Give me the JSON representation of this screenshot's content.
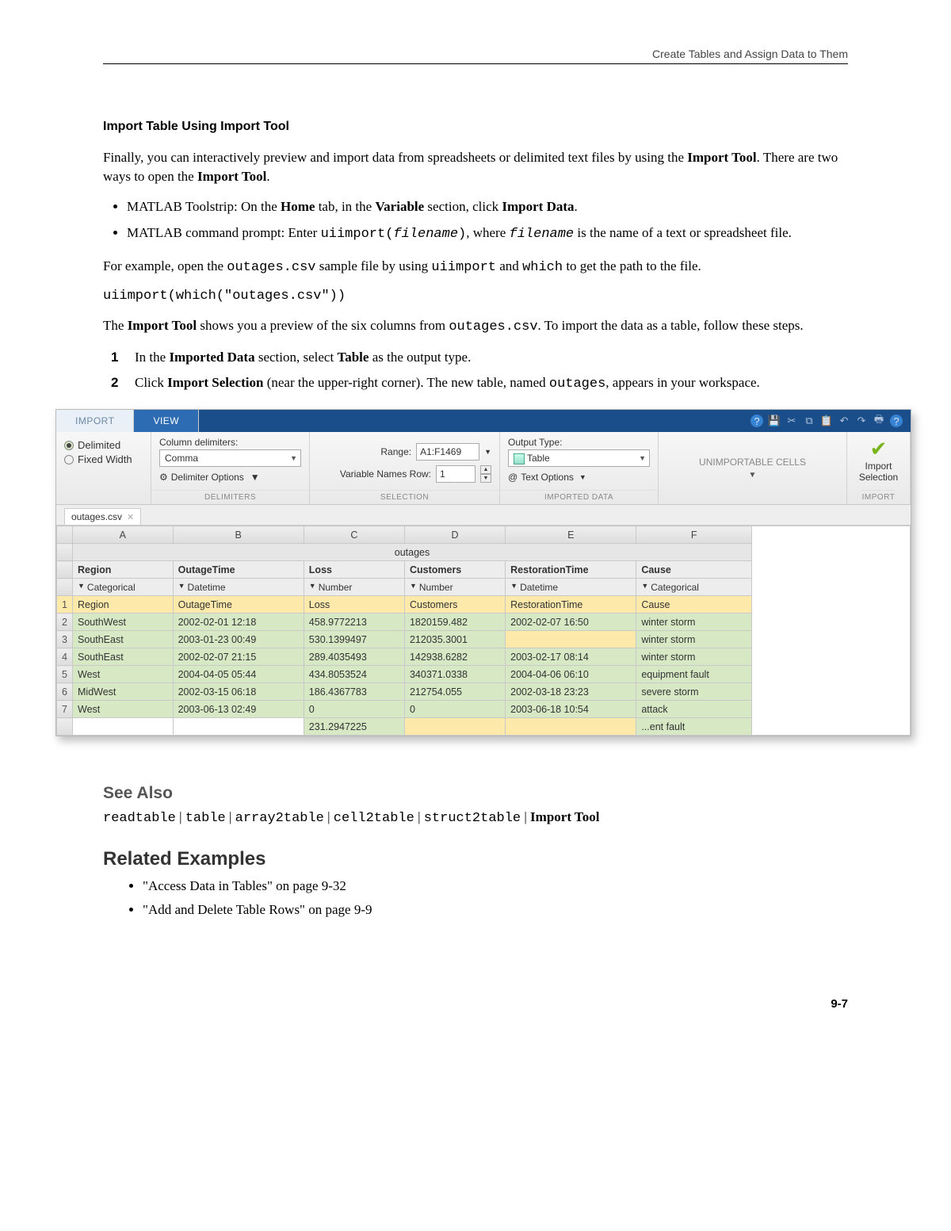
{
  "header": {
    "breadcrumb": "Create Tables and Assign Data to Them"
  },
  "section": {
    "title": "Import Table Using Import Tool",
    "p1_a": "Finally, you can interactively preview and import data from spreadsheets or delimited text files by using the ",
    "p1_b": "Import Tool",
    "p1_c": ". There are two ways to open the ",
    "p1_d": "Import Tool",
    "p1_e": ".",
    "bul1_a": "MATLAB Toolstrip: On the ",
    "bul1_b": "Home",
    "bul1_c": " tab, in the ",
    "bul1_d": "Variable",
    "bul1_e": " section, click ",
    "bul1_f": "Import Data",
    "bul1_g": ".",
    "bul2_a": "MATLAB command prompt: Enter ",
    "bul2_b": "uiimport(",
    "bul2_c": "filename",
    "bul2_d": ")",
    "bul2_e": ", where ",
    "bul2_f": "filename",
    "bul2_g": " is the name of a text or spreadsheet file.",
    "p2_a": "For example, open the ",
    "p2_b": "outages.csv",
    "p2_c": " sample file by using ",
    "p2_d": "uiimport",
    "p2_e": " and ",
    "p2_f": "which",
    "p2_g": " to get the path to the file.",
    "code1": "uiimport(which(\"outages.csv\"))",
    "p3_a": "The ",
    "p3_b": "Import Tool",
    "p3_c": " shows you a preview of the six columns from ",
    "p3_d": "outages.csv",
    "p3_e": ". To import the data as a table, follow these steps.",
    "step1_a": "In the ",
    "step1_b": "Imported Data",
    "step1_c": " section, select ",
    "step1_d": "Table",
    "step1_e": " as the output type.",
    "step2_a": "Click ",
    "step2_b": "Import Selection",
    "step2_c": " (near the upper-right corner). The new table, named ",
    "step2_d": "outages",
    "step2_e": ", appears in your workspace."
  },
  "tool": {
    "tabs": {
      "import": "IMPORT",
      "view": "VIEW"
    },
    "ribbon": {
      "delimited": "Delimited",
      "fixed": "Fixed Width",
      "col_delim_label": "Column delimiters:",
      "col_delim_value": "Comma",
      "delim_options": "Delimiter Options",
      "group_delim": "DELIMITERS",
      "range_label": "Range:",
      "range_value": "A1:F1469",
      "varnames_label": "Variable Names Row:",
      "varnames_value": "1",
      "group_selection": "SELECTION",
      "output_label": "Output Type:",
      "output_value": "Table",
      "text_options": "Text Options",
      "group_imported": "IMPORTED DATA",
      "unimportable": "UNIMPORTABLE CELLS",
      "import_btn": "Import Selection",
      "group_import": "IMPORT"
    },
    "file_tab": "outages.csv",
    "sheet": {
      "col_letters": [
        "A",
        "B",
        "C",
        "D",
        "E",
        "F"
      ],
      "span_title": "outages",
      "var_names": [
        "Region",
        "OutageTime",
        "Loss",
        "Customers",
        "RestorationTime",
        "Cause"
      ],
      "types": [
        "Categorical",
        "Datetime",
        "Number",
        "Number",
        "Datetime",
        "Categorical"
      ],
      "rows": [
        {
          "n": "1",
          "cells": [
            "Region",
            "OutageTime",
            "Loss",
            "Customers",
            "RestorationTime",
            "Cause"
          ],
          "hdr": true
        },
        {
          "n": "2",
          "cells": [
            "SouthWest",
            "2002-02-01 12:18",
            "458.9772213",
            "1820159.482",
            "2002-02-07 16:50",
            "winter storm"
          ]
        },
        {
          "n": "3",
          "cells": [
            "SouthEast",
            "2003-01-23 00:49",
            "530.1399497",
            "212035.3001",
            "",
            "winter storm"
          ],
          "yellow_idx": 4
        },
        {
          "n": "4",
          "cells": [
            "SouthEast",
            "2002-02-07 21:15",
            "289.4035493",
            "142938.6282",
            "2003-02-17 08:14",
            "winter storm"
          ]
        },
        {
          "n": "5",
          "cells": [
            "West",
            "2004-04-05 05:44",
            "434.8053524",
            "340371.0338",
            "2004-04-06 06:10",
            "equipment fault"
          ]
        },
        {
          "n": "6",
          "cells": [
            "MidWest",
            "2002-03-15 06:18",
            "186.4367783",
            "212754.055",
            "2002-03-18 23:23",
            "severe storm"
          ]
        },
        {
          "n": "7",
          "cells": [
            "West",
            "2003-06-13 02:49",
            "0",
            "0",
            "2003-06-18 10:54",
            "attack"
          ]
        }
      ],
      "partial": {
        "loss": "231.2947225",
        "cause": "...ent fault"
      }
    }
  },
  "seealso": {
    "title": "See Also",
    "items": [
      "readtable",
      "table",
      "array2table",
      "cell2table",
      "struct2table"
    ],
    "last": "Import Tool"
  },
  "related": {
    "title": "Related Examples",
    "items": [
      "\"Access Data in Tables\" on page 9-32",
      "\"Add and Delete Table Rows\" on page 9-9"
    ]
  },
  "pagenum": "9-7"
}
